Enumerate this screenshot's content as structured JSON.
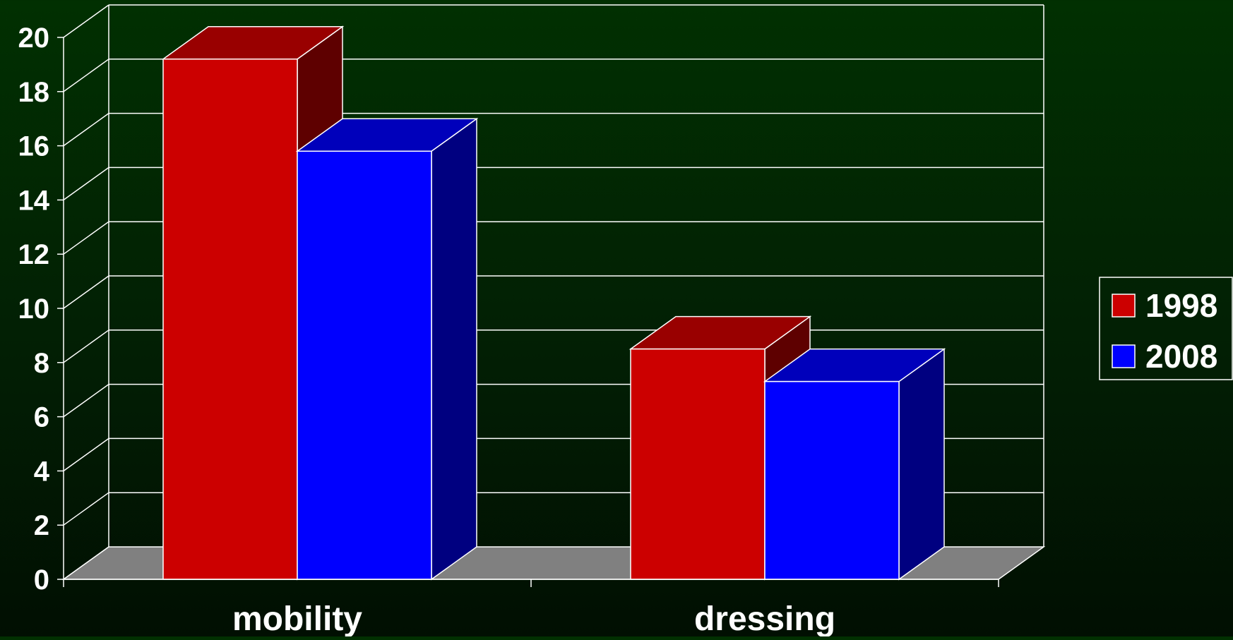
{
  "chart_data": {
    "type": "bar",
    "style": "3d-clustered-column",
    "categories": [
      "mobility",
      "dressing"
    ],
    "series": [
      {
        "name": "1998",
        "values": [
          19.2,
          8.5
        ],
        "color": "#cc0000",
        "top_color": "#990000",
        "side_color": "#5e0000"
      },
      {
        "name": "2008",
        "values": [
          15.8,
          7.3
        ],
        "color": "#0000ff",
        "top_color": "#0000bb",
        "side_color": "#000080"
      }
    ],
    "title": "",
    "xlabel": "",
    "ylabel": "",
    "ylim": [
      0,
      20
    ],
    "yticks": [
      "0",
      "2",
      "4",
      "6",
      "8",
      "10",
      "12",
      "14",
      "16",
      "18",
      "20"
    ],
    "grid": true,
    "legend_position": "right",
    "colors": {
      "background": "#012a02",
      "floor": "#808080",
      "grid": "#ffffff",
      "text": "#ffffff"
    }
  }
}
